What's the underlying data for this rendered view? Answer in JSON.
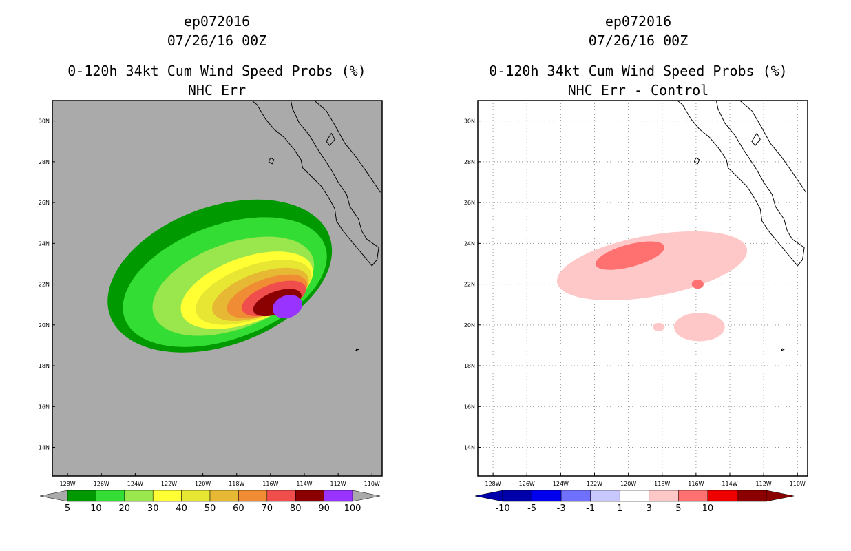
{
  "chart_data": [
    {
      "type": "contour-map",
      "title": [
        "ep072016",
        "07/26/16 00Z",
        "0-120h 34kt Cum Wind Speed Probs (%)",
        "NHC Err"
      ],
      "xlabel": "",
      "ylabel": "",
      "lon_ticks": [
        "128W",
        "126W",
        "124W",
        "122W",
        "120W",
        "118W",
        "116W",
        "114W",
        "112W",
        "110W"
      ],
      "lat_ticks": [
        "14N",
        "16N",
        "18N",
        "20N",
        "22N",
        "24N",
        "26N",
        "28N",
        "30N"
      ],
      "lon_range": [
        -128.9,
        -109.4
      ],
      "lat_range": [
        12.6,
        31.0
      ],
      "background_color": "#aaaaaa",
      "grid": false,
      "colorbar": {
        "labels": [
          "5",
          "10",
          "20",
          "30",
          "40",
          "50",
          "60",
          "70",
          "80",
          "90",
          "100"
        ],
        "colors": [
          "#009900",
          "#33dd33",
          "#99e64d",
          "#ffff33",
          "#e6e633",
          "#e6b833",
          "#f08c33",
          "#f04d4d",
          "#8b0000",
          "#9933ff"
        ],
        "end_color": "#aaaaaa"
      },
      "contour_levels": [
        {
          "level": 5,
          "color": "#009900",
          "center": [
            -119.0,
            22.4
          ],
          "radius": [
            6.9,
            3.4
          ],
          "rotation": -20
        },
        {
          "level": 10,
          "color": "#33dd33",
          "center": [
            -118.7,
            22.1
          ],
          "radius": [
            6.3,
            2.8
          ],
          "rotation": -20
        },
        {
          "level": 20,
          "color": "#99e64d",
          "center": [
            -118.2,
            21.9
          ],
          "radius": [
            5.0,
            2.1
          ],
          "rotation": -20
        },
        {
          "level": 30,
          "color": "#ffff33",
          "center": [
            -117.4,
            21.7
          ],
          "radius": [
            4.1,
            1.6
          ],
          "rotation": -20
        },
        {
          "level": 40,
          "color": "#e6e633",
          "center": [
            -117.0,
            21.6
          ],
          "radius": [
            3.6,
            1.3
          ],
          "rotation": -20
        },
        {
          "level": 50,
          "color": "#e6b833",
          "center": [
            -116.6,
            21.5
          ],
          "radius": [
            3.0,
            1.05
          ],
          "rotation": -20
        },
        {
          "level": 60,
          "color": "#f08c33",
          "center": [
            -116.2,
            21.4
          ],
          "radius": [
            2.5,
            0.85
          ],
          "rotation": -20
        },
        {
          "level": 70,
          "color": "#f04d4d",
          "center": [
            -115.8,
            21.3
          ],
          "radius": [
            2.0,
            0.7
          ],
          "rotation": -20
        },
        {
          "level": 80,
          "color": "#8b0000",
          "center": [
            -115.6,
            21.1
          ],
          "radius": [
            1.5,
            0.55
          ],
          "rotation": -20
        },
        {
          "level": 90,
          "color": "#9933ff",
          "center": [
            -115.0,
            20.9
          ],
          "radius": [
            0.9,
            0.55
          ],
          "rotation": -20
        }
      ]
    },
    {
      "type": "contour-map",
      "title": [
        "ep072016",
        "07/26/16 00Z",
        "0-120h 34kt Cum Wind Speed Probs (%)",
        "NHC Err - Control"
      ],
      "xlabel": "",
      "ylabel": "",
      "lon_ticks": [
        "128W",
        "126W",
        "124W",
        "122W",
        "120W",
        "118W",
        "116W",
        "114W",
        "112W",
        "110W"
      ],
      "lat_ticks": [
        "14N",
        "16N",
        "18N",
        "20N",
        "22N",
        "24N",
        "26N",
        "28N",
        "30N"
      ],
      "lon_range": [
        -128.9,
        -109.4
      ],
      "lat_range": [
        12.6,
        31.0
      ],
      "background_color": "#ffffff",
      "grid": true,
      "colorbar": {
        "labels": [
          "-10",
          "-5",
          "-3",
          "-1",
          "1",
          "3",
          "5",
          "10"
        ],
        "colors": [
          "#0000aa",
          "#0000ee",
          "#7070ff",
          "#c8c8ff",
          "#ffffff",
          "#ffc8c8",
          "#ff7070",
          "#ee0000",
          "#8b0000"
        ],
        "left_end_color": "#0000aa",
        "right_end_color": "#8b0000"
      },
      "contour_levels": [
        {
          "level": 1,
          "color": "#ffc8c8",
          "center": [
            -118.6,
            22.9
          ],
          "radius": [
            5.7,
            1.5
          ],
          "rotation": -10
        },
        {
          "level": 1,
          "color": "#ffc8c8",
          "center": [
            -115.8,
            19.9
          ],
          "radius": [
            1.5,
            0.7
          ],
          "rotation": 0
        },
        {
          "level": 1,
          "color": "#ffc8c8",
          "center": [
            -118.2,
            19.9
          ],
          "radius": [
            0.35,
            0.2
          ],
          "rotation": 0
        },
        {
          "level": 3,
          "color": "#ff7070",
          "center": [
            -119.9,
            23.4
          ],
          "radius": [
            2.1,
            0.55
          ],
          "rotation": -15
        },
        {
          "level": 3,
          "color": "#ff7070",
          "center": [
            -115.9,
            22.0
          ],
          "radius": [
            0.35,
            0.22
          ],
          "rotation": 0
        }
      ]
    }
  ],
  "colors": {
    "land_outline": "#000000",
    "grid_line": "#999999"
  }
}
